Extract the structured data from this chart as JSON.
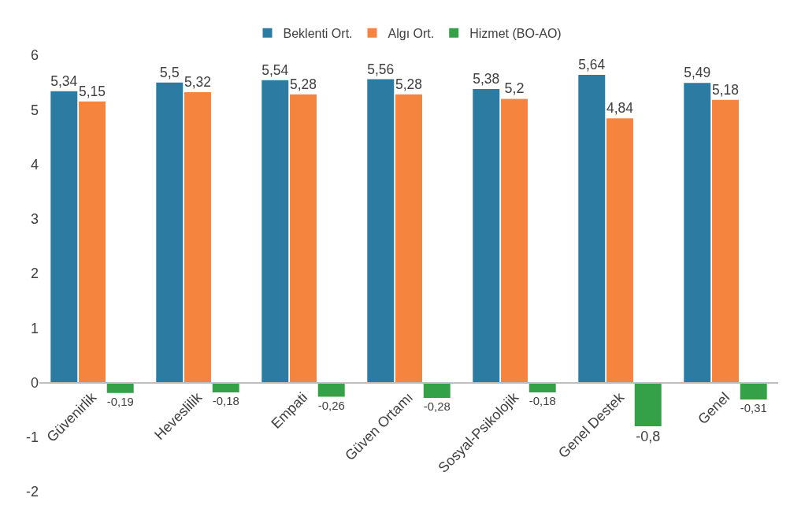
{
  "chart_data": {
    "type": "bar",
    "categories": [
      "Güvenirlik",
      "Heveslilik",
      "Empati",
      "Güven Ortamı",
      "Sosyal-Psikolojik",
      "Genel Destek",
      "Genel"
    ],
    "series": [
      {
        "name": "Beklenti Ort.",
        "color": "#2b7ba3",
        "values": [
          5.34,
          5.5,
          5.54,
          5.56,
          5.38,
          5.64,
          5.49
        ],
        "value_labels": [
          "5,34",
          "5,5",
          "5,54",
          "5,56",
          "5,38",
          "5,64",
          "5,49"
        ]
      },
      {
        "name": "Algı Ort.",
        "color": "#f5843f",
        "values": [
          5.15,
          5.32,
          5.28,
          5.28,
          5.2,
          4.84,
          5.18
        ],
        "value_labels": [
          "5,15",
          "5,32",
          "5,28",
          "5,28",
          "5,2",
          "4,84",
          "5,18"
        ]
      },
      {
        "name": "Hizmet (BO-AO)",
        "color": "#34a048",
        "values": [
          -0.19,
          -0.18,
          -0.26,
          -0.28,
          -0.18,
          -0.8,
          -0.31
        ],
        "value_labels": [
          "-0,19",
          "-0,18",
          "-0,26",
          "-0,28",
          "-0,18",
          "-0,8",
          "-0,31"
        ]
      }
    ],
    "ylim": [
      -2,
      6
    ],
    "yticks": [
      -2,
      -1,
      0,
      1,
      2,
      3,
      4,
      5,
      6
    ],
    "grid": false,
    "legend": "top"
  }
}
